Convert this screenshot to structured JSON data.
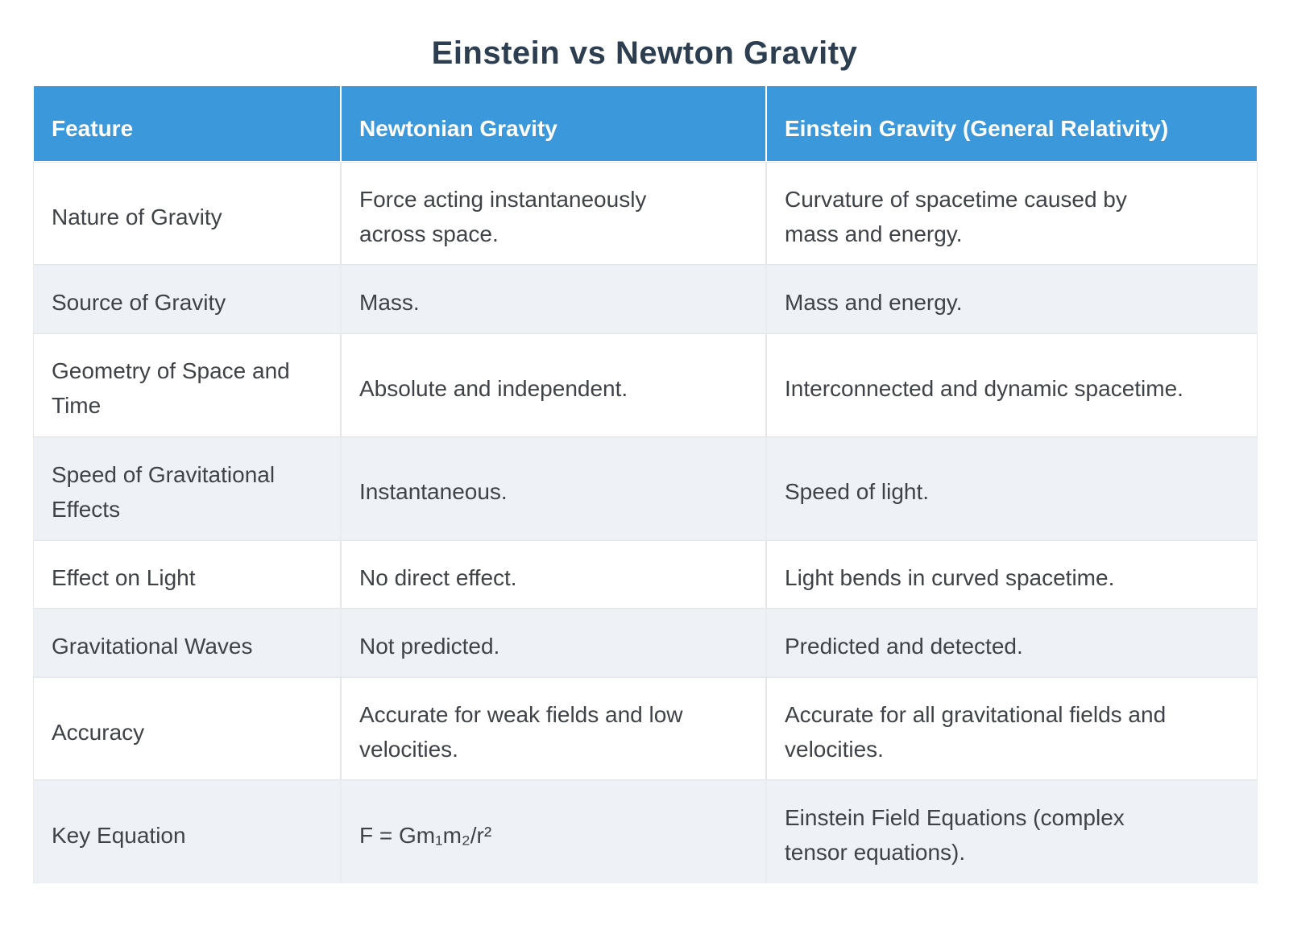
{
  "page_title": "Einstein vs Newton Gravity",
  "colors": {
    "header_bg": "#3b98db",
    "header_text": "#ffffff",
    "alt_row_bg": "#eef1f6",
    "title_text": "#2c3e50",
    "body_text": "#3f4347",
    "cell_hairline": "#e5e6e8",
    "page_bg": "#ffffff"
  },
  "chart_data": {
    "type": "table",
    "title": "Einstein vs Newton Gravity",
    "columns": [
      "Feature",
      "Newtonian Gravity",
      "Einstein Gravity (General Relativity)"
    ],
    "rows": [
      {
        "feature": "Nature of Gravity",
        "newton": "Force acting instantaneously\nacross space.",
        "einstein": "Curvature of spacetime caused by\nmass and energy."
      },
      {
        "feature": "Source of Gravity",
        "newton": "Mass.",
        "einstein": "Mass and energy."
      },
      {
        "feature": "Geometry of Space and\nTime",
        "newton": "Absolute and independent.",
        "einstein": "Interconnected and dynamic spacetime."
      },
      {
        "feature": "Speed of Gravitational\nEffects",
        "newton": "Instantaneous.",
        "einstein": "Speed of light."
      },
      {
        "feature": "Effect on Light",
        "newton": "No direct effect.",
        "einstein": "Light bends in curved spacetime."
      },
      {
        "feature": "Gravitational Waves",
        "newton": "Not predicted.",
        "einstein": "Predicted and detected."
      },
      {
        "feature": "Accuracy",
        "newton": "Accurate for weak fields and low\nvelocities.",
        "einstein": "Accurate for all gravitational fields and\nvelocities."
      },
      {
        "feature": "Key Equation",
        "newton": "F = Gm₁m₂/r²",
        "einstein": "Einstein Field Equations (complex\ntensor equations)."
      }
    ]
  }
}
